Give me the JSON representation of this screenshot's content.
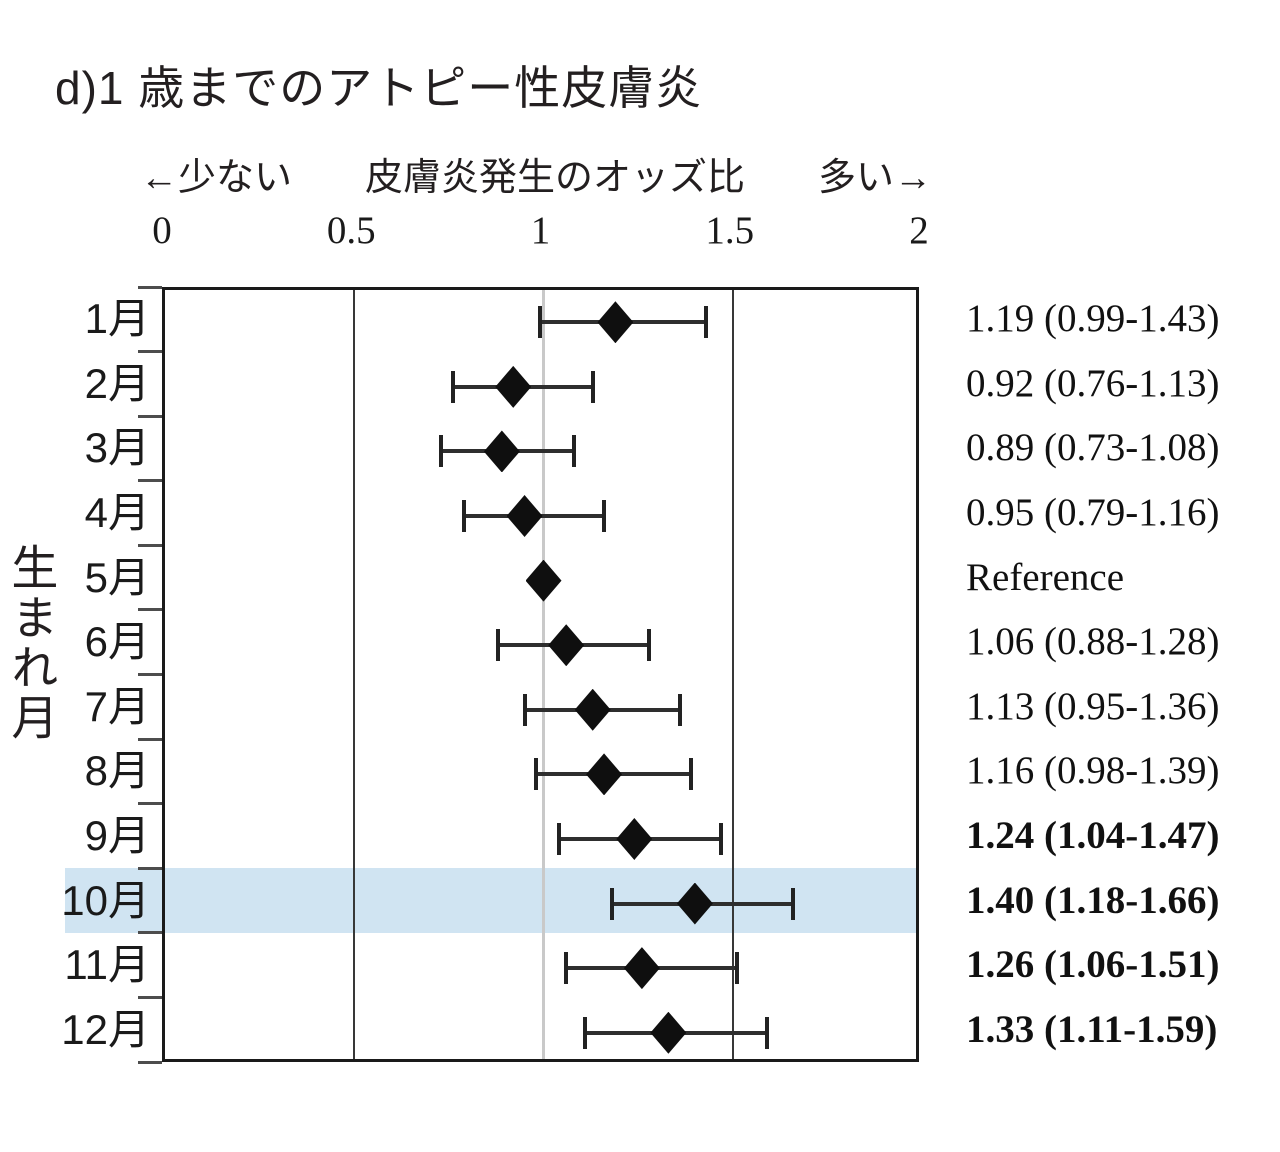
{
  "title": "d)1 歳までのアトピー性皮膚炎",
  "axis_header": {
    "left": "←少ない",
    "center": "皮膚炎発生のオッズ比",
    "right": "多い→"
  },
  "chart_data": {
    "type": "scatter",
    "variant": "forest-plot",
    "title": "d)1 歳までのアトピー性皮膚炎",
    "xlabel": "皮膚炎発生のオッズ比",
    "xlabel_arrow_left": "←少ない",
    "xlabel_arrow_right": "多い→",
    "ylabel": "生まれ月",
    "xlim": [
      0,
      2
    ],
    "xticks": [
      "0",
      "0.5",
      "1",
      "1.5",
      "2"
    ],
    "gridlines_dark": [
      0.5,
      1.5
    ],
    "reference_line": 1,
    "grid": true,
    "legend": false,
    "categories": [
      "1月",
      "2月",
      "3月",
      "4月",
      "5月",
      "6月",
      "7月",
      "8月",
      "9月",
      "10月",
      "11月",
      "12月"
    ],
    "rows": [
      {
        "label": "1月",
        "or": 1.19,
        "ci_low": 0.99,
        "ci_high": 1.43,
        "text": "1.19 (0.99-1.43)",
        "bold": false,
        "highlight": false
      },
      {
        "label": "2月",
        "or": 0.92,
        "ci_low": 0.76,
        "ci_high": 1.13,
        "text": "0.92 (0.76-1.13)",
        "bold": false,
        "highlight": false
      },
      {
        "label": "3月",
        "or": 0.89,
        "ci_low": 0.73,
        "ci_high": 1.08,
        "text": "0.89 (0.73-1.08)",
        "bold": false,
        "highlight": false
      },
      {
        "label": "4月",
        "or": 0.95,
        "ci_low": 0.79,
        "ci_high": 1.16,
        "text": "0.95 (0.79-1.16)",
        "bold": false,
        "highlight": false
      },
      {
        "label": "5月",
        "or": 1.0,
        "ci_low": null,
        "ci_high": null,
        "text": "Reference",
        "bold": false,
        "highlight": false
      },
      {
        "label": "6月",
        "or": 1.06,
        "ci_low": 0.88,
        "ci_high": 1.28,
        "text": "1.06 (0.88-1.28)",
        "bold": false,
        "highlight": false
      },
      {
        "label": "7月",
        "or": 1.13,
        "ci_low": 0.95,
        "ci_high": 1.36,
        "text": "1.13 (0.95-1.36)",
        "bold": false,
        "highlight": false
      },
      {
        "label": "8月",
        "or": 1.16,
        "ci_low": 0.98,
        "ci_high": 1.39,
        "text": "1.16 (0.98-1.39)",
        "bold": false,
        "highlight": false
      },
      {
        "label": "9月",
        "or": 1.24,
        "ci_low": 1.04,
        "ci_high": 1.47,
        "text": "1.24 (1.04-1.47)",
        "bold": true,
        "highlight": false
      },
      {
        "label": "10月",
        "or": 1.4,
        "ci_low": 1.18,
        "ci_high": 1.66,
        "text": "1.40 (1.18-1.66)",
        "bold": true,
        "highlight": true
      },
      {
        "label": "11月",
        "or": 1.26,
        "ci_low": 1.06,
        "ci_high": 1.51,
        "text": "1.26 (1.06-1.51)",
        "bold": true,
        "highlight": false
      },
      {
        "label": "12月",
        "or": 1.33,
        "ci_low": 1.11,
        "ci_high": 1.59,
        "text": "1.33 (1.11-1.59)",
        "bold": true,
        "highlight": false
      }
    ]
  },
  "colors": {
    "highlight_band": "#d0e4f2",
    "marker": "#0f0f0f",
    "error_bar": "#2e2e2e",
    "gridline_dark": "#383838",
    "gridline_reference": "#c9c9c9",
    "plot_border": "#1a1a1a",
    "text": "#231f20"
  }
}
